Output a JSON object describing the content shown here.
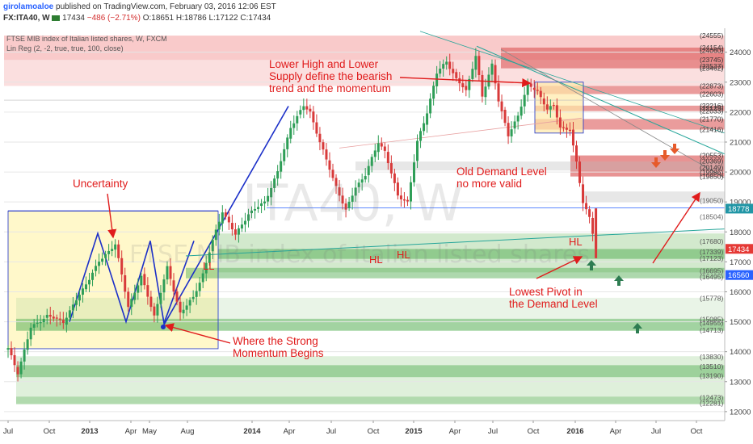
{
  "header": {
    "author": "girolamoaloe",
    "published": "published on TradingView.com, February 03, 2016 12:06 EST",
    "symbol": "FX:ITA40, W",
    "last": "17434",
    "change": "−486 (−2.71%)",
    "ohlc": {
      "o": "O:18651",
      "h": "H:18786",
      "l": "L:17122",
      "c": "C:17434"
    }
  },
  "indicators": {
    "title": "FTSE MIB index of Italian listed shares, W, FXCM",
    "linreg": "Lin Reg (2, -2, true, true, 100, close)"
  },
  "watermark": {
    "symbol": "ITA40, W",
    "name": "FTSE MIB index of Italian listed shares"
  },
  "annotations": {
    "lower_high": "Lower High and Lower\nSupply define the bearish\ntrend and the momentum",
    "uncertainty": "Uncertainty",
    "old_demand": "Old Demand Level\nno more valid",
    "strong_momentum": "Where the Strong\nMomentum Begins",
    "lowest_pivot": "Lowest Pivot in\nthe Demand Level",
    "ll": "LL",
    "hl1": "HL",
    "hl2": "HL",
    "hl3": "HL"
  },
  "chart_data": {
    "type": "candlestick",
    "timeframe": "weekly",
    "x_labels": [
      "Jul",
      "Oct",
      "2013",
      "Apr",
      "May",
      "Aug",
      "2014",
      "Apr",
      "Jul",
      "Oct",
      "2015",
      "Apr",
      "Jul",
      "Oct",
      "2016",
      "Apr",
      "Jul",
      "Oct"
    ],
    "y_ticks": [
      12000,
      13000,
      14000,
      15000,
      16000,
      17000,
      18000,
      19000,
      20000,
      21000,
      22000,
      23000,
      24000
    ],
    "ylim": [
      11700,
      24800
    ],
    "price_path": [
      [
        0,
        14100
      ],
      [
        3,
        13300
      ],
      [
        7,
        14800
      ],
      [
        12,
        15200
      ],
      [
        17,
        15000
      ],
      [
        22,
        15900
      ],
      [
        28,
        17000
      ],
      [
        33,
        17600
      ],
      [
        37,
        15500
      ],
      [
        41,
        16500
      ],
      [
        45,
        15200
      ],
      [
        49,
        16800
      ],
      [
        53,
        15300
      ],
      [
        57,
        15800
      ],
      [
        60,
        16600
      ],
      [
        63,
        17700
      ],
      [
        66,
        18700
      ],
      [
        70,
        17900
      ],
      [
        74,
        18600
      ],
      [
        79,
        19000
      ],
      [
        83,
        20000
      ],
      [
        87,
        21500
      ],
      [
        91,
        22200
      ],
      [
        93,
        22000
      ],
      [
        96,
        21000
      ],
      [
        100,
        19800
      ],
      [
        104,
        18700
      ],
      [
        107,
        19500
      ],
      [
        110,
        19900
      ],
      [
        114,
        21000
      ],
      [
        116,
        20700
      ],
      [
        120,
        19200
      ],
      [
        123,
        19000
      ],
      [
        126,
        21000
      ],
      [
        129,
        22000
      ],
      [
        132,
        23300
      ],
      [
        135,
        23700
      ],
      [
        138,
        23100
      ],
      [
        141,
        22700
      ],
      [
        144,
        23900
      ],
      [
        146,
        22500
      ],
      [
        149,
        23600
      ],
      [
        151,
        22400
      ],
      [
        154,
        21200
      ],
      [
        157,
        21900
      ],
      [
        160,
        22900
      ],
      [
        163,
        22700
      ],
      [
        166,
        22100
      ],
      [
        168,
        22200
      ],
      [
        170,
        21500
      ],
      [
        173,
        21400
      ],
      [
        175,
        20300
      ],
      [
        177,
        19000
      ],
      [
        179,
        18500
      ],
      [
        181,
        17434
      ]
    ],
    "levels": [
      {
        "kind": "supply",
        "label": "(24555)",
        "value": 24555
      },
      {
        "kind": "supply",
        "label": "(24154)",
        "value": 24154
      },
      {
        "kind": "supply",
        "label": "(24060)",
        "value": 24060
      },
      {
        "kind": "supply",
        "label": "(23745)",
        "value": 23745
      },
      {
        "kind": "supply",
        "label": "(23537)",
        "value": 23537
      },
      {
        "kind": "supply",
        "label": "(23462)",
        "value": 23462
      },
      {
        "kind": "supply",
        "label": "(22873)",
        "value": 22873
      },
      {
        "kind": "supply",
        "label": "(22603)",
        "value": 22603
      },
      {
        "kind": "supply",
        "label": "(22216)",
        "value": 22216
      },
      {
        "kind": "supply",
        "label": "(22129)",
        "value": 22129
      },
      {
        "kind": "supply",
        "label": "(22033)",
        "value": 22033
      },
      {
        "kind": "supply",
        "label": "(21770)",
        "value": 21770
      },
      {
        "kind": "supply",
        "label": "(21416)",
        "value": 21416
      },
      {
        "kind": "supply",
        "label": "(20553)",
        "value": 20553
      },
      {
        "kind": "supply",
        "label": "(20369)",
        "value": 20369
      },
      {
        "kind": "supply",
        "label": "(20149)",
        "value": 20149
      },
      {
        "kind": "supply",
        "label": "(19986)",
        "value": 19986
      },
      {
        "kind": "supply",
        "label": "(19850)",
        "value": 19850
      },
      {
        "kind": "marker",
        "label": "(19050)",
        "value": 19050
      },
      {
        "kind": "marker",
        "label": "(18504)",
        "value": 18504
      },
      {
        "kind": "demand",
        "label": "(17680)",
        "value": 17680
      },
      {
        "kind": "demand",
        "label": "(17339)",
        "value": 17339
      },
      {
        "kind": "demand",
        "label": "(17123)",
        "value": 17123
      },
      {
        "kind": "demand",
        "label": "(16695)",
        "value": 16695
      },
      {
        "kind": "demand",
        "label": "(16495)",
        "value": 16495
      },
      {
        "kind": "demand",
        "label": "(15778)",
        "value": 15778
      },
      {
        "kind": "demand",
        "label": "(15085)",
        "value": 15085
      },
      {
        "kind": "demand",
        "label": "(14955)",
        "value": 14955
      },
      {
        "kind": "demand",
        "label": "(14713)",
        "value": 14713
      },
      {
        "kind": "demand",
        "label": "(13830)",
        "value": 13830
      },
      {
        "kind": "demand",
        "label": "(13510)",
        "value": 13510
      },
      {
        "kind": "demand",
        "label": "(13190)",
        "value": 13190
      },
      {
        "kind": "demand",
        "label": "(12473)",
        "value": 12473
      },
      {
        "kind": "demand",
        "label": "(12281)",
        "value": 12281
      }
    ],
    "price_labels": [
      {
        "text": "18778",
        "value": 18778,
        "color": "#2196a6"
      },
      {
        "text": "17434",
        "value": 17434,
        "color": "#e53935"
      },
      {
        "text": "16560",
        "value": 16560,
        "color": "#2962ff"
      }
    ],
    "colors": {
      "up": "#2e9e57",
      "down": "#d83a3a",
      "supply": "#f28c8c",
      "demand": "#9ccf90",
      "uncertainty": "#fff6b8",
      "trend": "#1b2fc8",
      "annotation": "#e01b1b"
    }
  }
}
